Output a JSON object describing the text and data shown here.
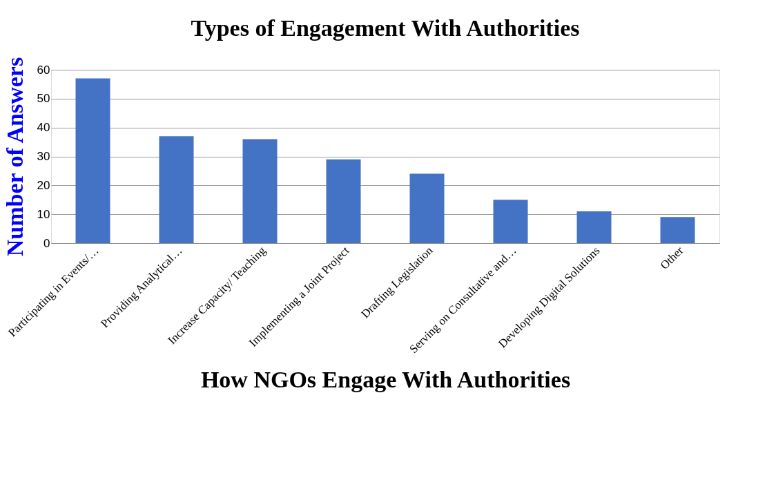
{
  "chart_data": {
    "type": "bar",
    "title": "Types of Engagement With Authorities",
    "xlabel": "How NGOs Engage With Authorities",
    "ylabel": "Number of Answers",
    "categories": [
      "Participating in Events/…",
      "Providing Analytical…",
      "Increase Capacity/ Teaching",
      "Implementing a Joint Project",
      "Drafting Legislation",
      "Serving on Consultative and…",
      "Developing Digital Solutions",
      "Other"
    ],
    "values": [
      57,
      37,
      36,
      29,
      24,
      15,
      11,
      9
    ],
    "color": "#4472c4",
    "ylim": [
      0,
      60
    ],
    "yticks": [
      0,
      10,
      20,
      30,
      40,
      50,
      60
    ],
    "grid": "y"
  }
}
